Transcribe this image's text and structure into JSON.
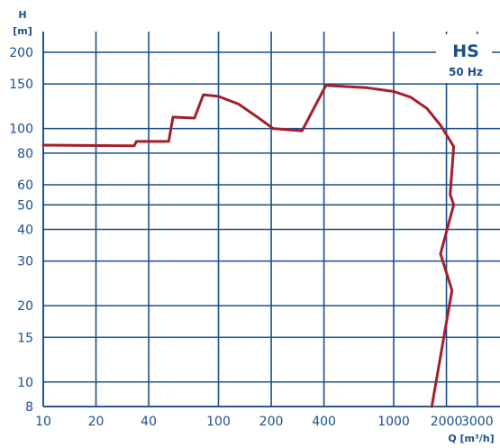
{
  "chart_data": {
    "type": "line",
    "title": "HS",
    "subtitle": "50 Hz",
    "xlabel": "Q [m³/h]",
    "ylabel_line1": "H",
    "ylabel_line2": "[m]",
    "xscale": "log",
    "yscale": "log",
    "xlim": [
      10,
      3000
    ],
    "ylim": [
      8,
      250
    ],
    "grid": true,
    "xticks": [
      10,
      20,
      40,
      100,
      200,
      400,
      1000,
      2000,
      3000
    ],
    "xtick_labels": [
      "10",
      "20",
      "40",
      "100",
      "200",
      "400",
      "1000",
      "2000",
      "3000"
    ],
    "yticks": [
      8,
      10,
      15,
      20,
      30,
      40,
      50,
      60,
      80,
      100,
      150,
      200
    ],
    "ytick_labels": [
      "8",
      "10",
      "15",
      "20",
      "30",
      "40",
      "50",
      "60",
      "80",
      "100",
      "150",
      "200"
    ],
    "colors": {
      "curve": "#a31f2b",
      "grid": "#1a4f8a",
      "text": "#1a4f8a"
    },
    "series": [
      {
        "values": [
          [
            10,
            86
          ],
          [
            33,
            85.5
          ],
          [
            34,
            89
          ],
          [
            52,
            89
          ],
          [
            55,
            111
          ],
          [
            73,
            110
          ],
          [
            82,
            136
          ],
          [
            100,
            134
          ],
          [
            130,
            125
          ],
          [
            170,
            110
          ],
          [
            205,
            100
          ],
          [
            300,
            98
          ],
          [
            410,
            148
          ],
          [
            700,
            145
          ],
          [
            1000,
            140
          ],
          [
            1250,
            133
          ],
          [
            1550,
            120
          ],
          [
            1850,
            103
          ],
          [
            2200,
            85
          ],
          [
            2100,
            55
          ],
          [
            2200,
            50
          ],
          [
            1850,
            32
          ],
          [
            2150,
            23
          ],
          [
            1650,
            8
          ]
        ]
      }
    ]
  }
}
